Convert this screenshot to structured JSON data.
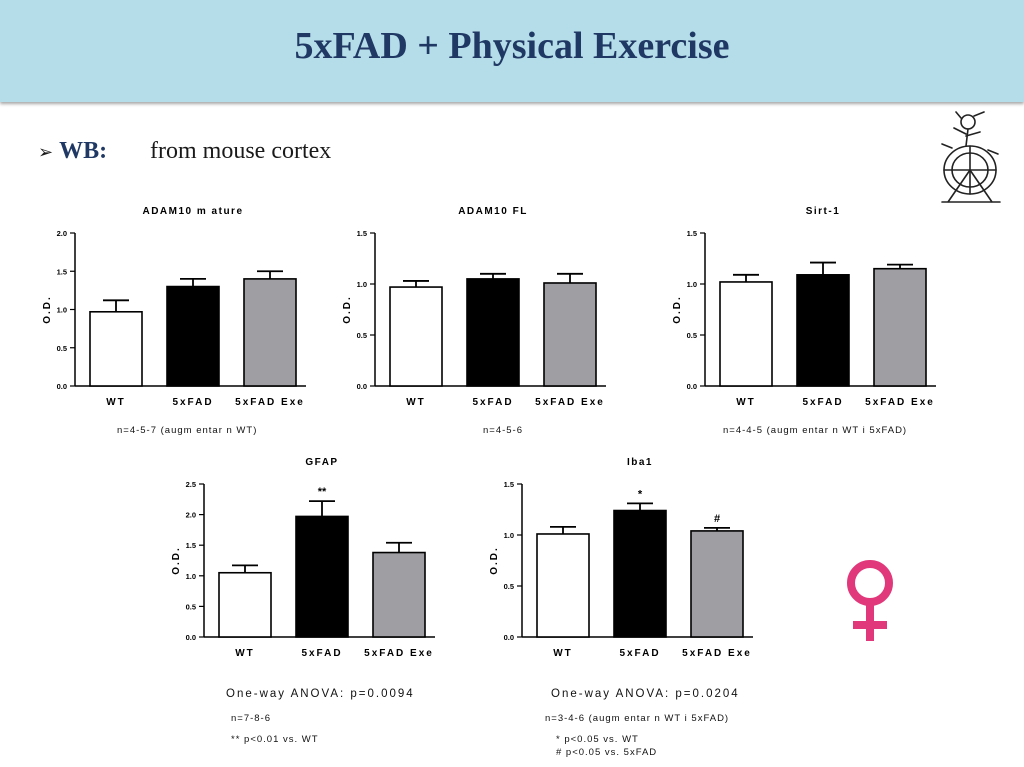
{
  "header": {
    "title": "5xFAD + Physical Exercise"
  },
  "section": {
    "arrow": "➢",
    "label": "WB:",
    "source": "from mouse cortex"
  },
  "colors": {
    "title": "#1f3864",
    "header_bg": "#b4dde9",
    "wt": "#ffffff",
    "fad": "#000000",
    "exe": "#9e9ea3",
    "female_symbol": "#e0387a"
  },
  "icons": {
    "mascot": "mascot-icon",
    "female": "female-symbol-icon"
  },
  "chart_data": [
    {
      "type": "bar",
      "title": "ADAM10 m ature",
      "ylabel": "O.D.",
      "categories": [
        "WT",
        "5xFAD",
        "5xFAD Exe"
      ],
      "values": [
        0.97,
        1.3,
        1.4
      ],
      "errors": [
        0.15,
        0.1,
        0.1
      ],
      "ylim": [
        0,
        2.0
      ],
      "yticks": [
        "0.0",
        "0.5",
        "1.0",
        "1.5",
        "2.0"
      ],
      "annotations": [
        "",
        "",
        ""
      ]
    },
    {
      "type": "bar",
      "title": "ADAM10 FL",
      "ylabel": "O.D.",
      "categories": [
        "WT",
        "5xFAD",
        "5xFAD Exe"
      ],
      "values": [
        0.97,
        1.05,
        1.01
      ],
      "errors": [
        0.06,
        0.05,
        0.09
      ],
      "ylim": [
        0,
        1.5
      ],
      "yticks": [
        "0.0",
        "0.5",
        "1.0",
        "1.5"
      ],
      "annotations": [
        "",
        "",
        ""
      ]
    },
    {
      "type": "bar",
      "title": "Sirt-1",
      "ylabel": "O.D.",
      "categories": [
        "WT",
        "5xFAD",
        "5xFAD Exe"
      ],
      "values": [
        1.02,
        1.09,
        1.15
      ],
      "errors": [
        0.07,
        0.12,
        0.04
      ],
      "ylim": [
        0,
        1.5
      ],
      "yticks": [
        "0.0",
        "0.5",
        "1.0",
        "1.5"
      ],
      "annotations": [
        "",
        "",
        ""
      ]
    },
    {
      "type": "bar",
      "title": "GFAP",
      "ylabel": "O.D.",
      "categories": [
        "WT",
        "5xFAD",
        "5xFAD Exe"
      ],
      "values": [
        1.05,
        1.97,
        1.38
      ],
      "errors": [
        0.12,
        0.25,
        0.16
      ],
      "ylim": [
        0,
        2.5
      ],
      "yticks": [
        "0.0",
        "0.5",
        "1.0",
        "1.5",
        "2.0",
        "2.5"
      ],
      "annotations": [
        "",
        "**",
        ""
      ]
    },
    {
      "type": "bar",
      "title": "Iba1",
      "ylabel": "O.D.",
      "categories": [
        "WT",
        "5xFAD",
        "5xFAD Exe"
      ],
      "values": [
        1.01,
        1.24,
        1.04
      ],
      "errors": [
        0.07,
        0.07,
        0.03
      ],
      "ylim": [
        0,
        1.5
      ],
      "yticks": [
        "0.0",
        "0.5",
        "1.0",
        "1.5"
      ],
      "annotations": [
        "",
        "*",
        "#"
      ]
    }
  ],
  "notes": {
    "adam10_mature": "n=4-5-7 (augm entar n WT)",
    "adam10_fl": "n=4-5-6",
    "sirt1": "n=4-4-5 (augm entar n WT i 5xFAD)",
    "gfap_anova": "One-way ANOVA: p=0.0094",
    "gfap_n": "n=7-8-6",
    "gfap_sig": "** p<0.01 vs. WT",
    "iba1_anova": "One-way ANOVA: p=0.0204",
    "iba1_n": "n=3-4-6 (augm entar n WT i 5xFAD)",
    "iba1_sig1": "* p<0.05 vs. WT",
    "iba1_sig2": "# p<0.05 vs. 5xFAD"
  }
}
